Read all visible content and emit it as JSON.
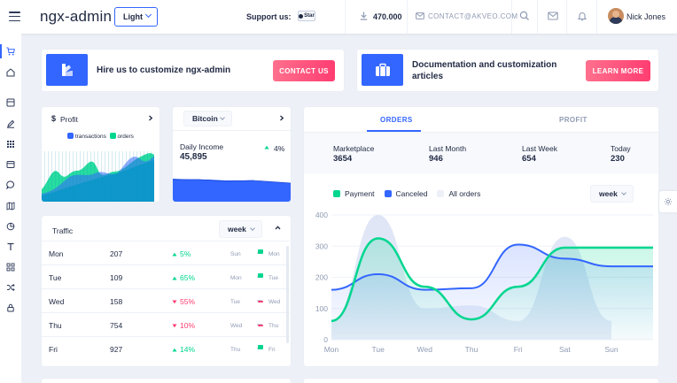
{
  "header": {
    "logo": "ngx-admin",
    "theme": "Light",
    "support_label": "Support us:",
    "github_label": "Star",
    "downloads": "470.000",
    "contact_email": "CONTACT@AKVEO.COM",
    "user_name": "Nick Jones"
  },
  "promo": {
    "hire_text": "Hire us to customize ngx-admin",
    "contact_button": "CONTACT US",
    "docs_text_line1": "Documentation and customization",
    "docs_text_line2": "articles",
    "learn_button": "LEARN MORE"
  },
  "profit_card": {
    "title": "Profit",
    "currency_icon": "$",
    "legend": [
      "transactions",
      "orders"
    ]
  },
  "bitcoin_card": {
    "currency": "Bitcoin",
    "label": "Daily Income",
    "value": "45,895",
    "delta": "4%"
  },
  "traffic": {
    "title": "Traffic",
    "period": "week",
    "rows": [
      {
        "day": "Mon",
        "value": "207",
        "delta": "5%",
        "direction": "up",
        "prev": "Sun",
        "cur": "Mon"
      },
      {
        "day": "Tue",
        "value": "109",
        "delta": "65%",
        "direction": "up",
        "prev": "Mon",
        "cur": "Tue"
      },
      {
        "day": "Wed",
        "value": "158",
        "delta": "55%",
        "direction": "down",
        "prev": "Tue",
        "cur": "Wed"
      },
      {
        "day": "Thu",
        "value": "754",
        "delta": "10%",
        "direction": "down",
        "prev": "Wed",
        "cur": "Thu"
      },
      {
        "day": "Fri",
        "value": "927",
        "delta": "14%",
        "direction": "up",
        "prev": "Thu",
        "cur": "Fri"
      }
    ]
  },
  "orders": {
    "tabs": [
      "ORDERS",
      "PROFIT"
    ],
    "active_tab": "ORDERS",
    "stats": [
      {
        "label": "Marketplace",
        "value": "3654"
      },
      {
        "label": "Last Month",
        "value": "946"
      },
      {
        "label": "Last Week",
        "value": "654"
      },
      {
        "label": "Today",
        "value": "230"
      }
    ],
    "legend": [
      "Payment",
      "Canceled",
      "All orders"
    ],
    "period": "week"
  },
  "colors": {
    "primary": "#3366ff",
    "success": "#00d68f",
    "danger": "#ff3d71",
    "info": "#0095ff"
  },
  "chart_data": {
    "type": "area",
    "title": "Orders",
    "categories": [
      "Mon",
      "Tue",
      "Wed",
      "Thu",
      "Fri",
      "Sat",
      "Sun"
    ],
    "ylim": [
      0,
      400
    ],
    "yticks": [
      0,
      100,
      200,
      300,
      400
    ],
    "legend_position": "top-left",
    "series": [
      {
        "name": "Payment",
        "values": [
          60,
          325,
          170,
          65,
          170,
          295,
          295
        ]
      },
      {
        "name": "Canceled",
        "values": [
          160,
          210,
          160,
          165,
          305,
          260,
          235
        ]
      },
      {
        "name": "All orders",
        "values": [
          60,
          400,
          100,
          110,
          60,
          330,
          60
        ]
      }
    ]
  }
}
